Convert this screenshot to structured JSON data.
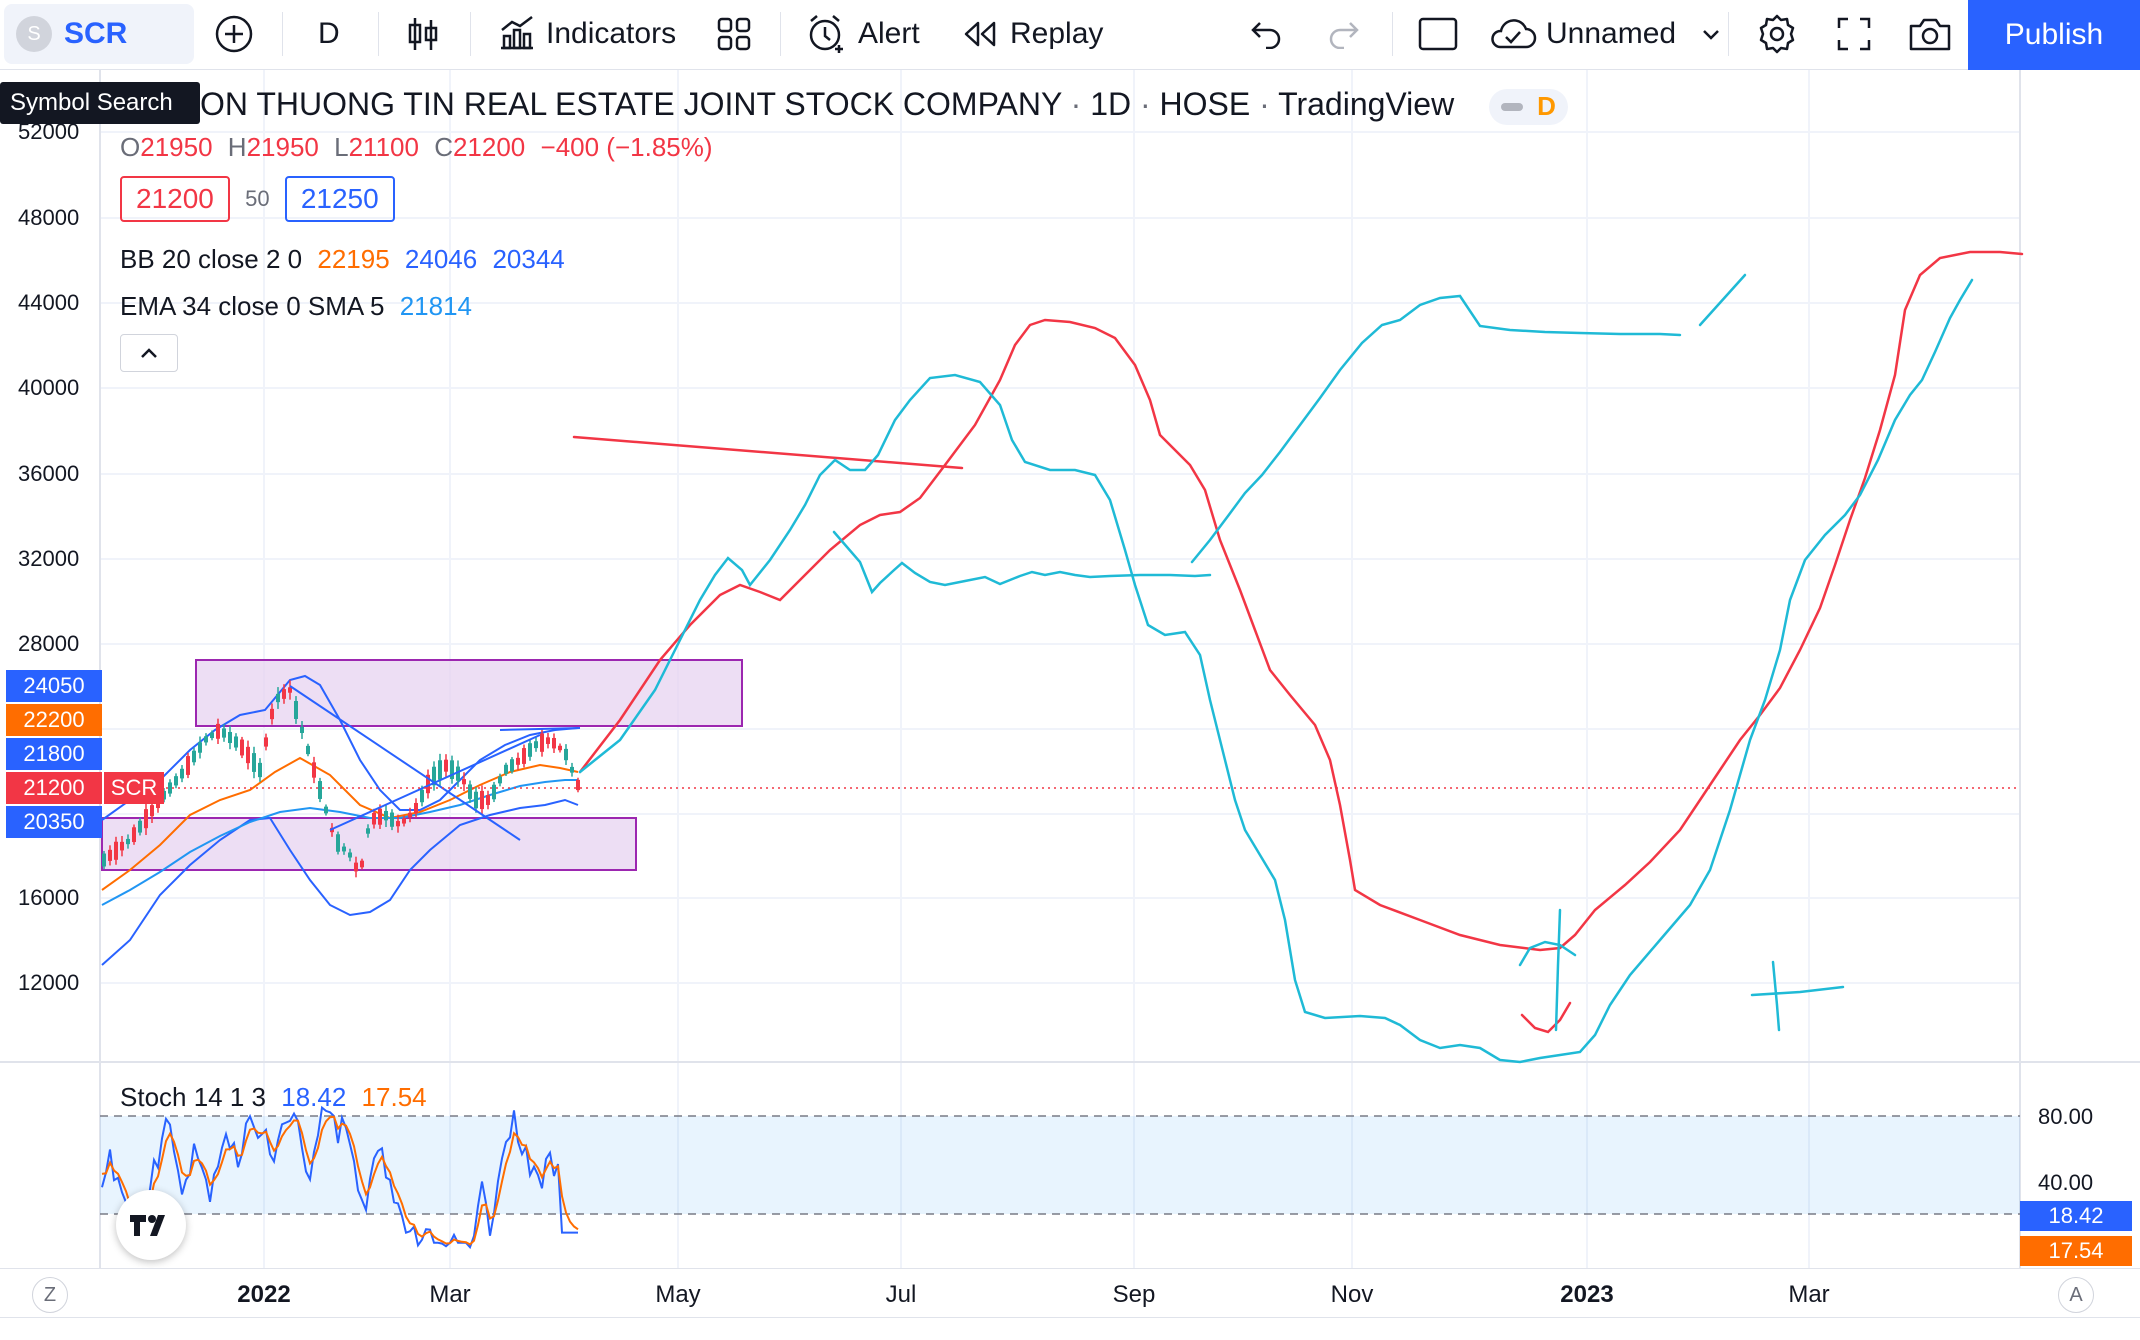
{
  "toolbar": {
    "symbol": "SCR",
    "symbol_logo_letter": "S",
    "interval": "D",
    "indicators_label": "Indicators",
    "alert_label": "Alert",
    "replay_label": "Replay",
    "layout_name": "Unnamed",
    "publish_label": "Publish"
  },
  "tooltip": {
    "text": "Symbol Search"
  },
  "legend": {
    "title_company": "ON THUONG TIN REAL ESTATE JOINT STOCK COMPANY",
    "title_interval": "1D",
    "title_exchange": "HOSE",
    "title_source": "TradingView",
    "title_sep": "·",
    "badge_letter": "D",
    "ohlc": {
      "o_label": "O",
      "o": "21950",
      "h_label": "H",
      "h": "21950",
      "l_label": "L",
      "l": "21100",
      "c_label": "C",
      "c": "21200",
      "change": "−400 (−1.85%)"
    },
    "bid": "21200",
    "spread": "50",
    "ask": "21250",
    "bb": {
      "label": "BB 20 close 2 0",
      "basis": "22195",
      "upper": "24046",
      "lower": "20344"
    },
    "ema": {
      "label": "EMA 34 close 0 SMA 5",
      "value": "21814"
    }
  },
  "price_axis": {
    "labels": [
      "52000",
      "48000",
      "44000",
      "40000",
      "36000",
      "32000",
      "28000",
      "16000",
      "12000"
    ],
    "tags": [
      {
        "value": "24050",
        "color": "#2962ff"
      },
      {
        "value": "22200",
        "color": "#ff6d00"
      },
      {
        "value": "21800",
        "color": "#2962ff"
      },
      {
        "value": "21200",
        "color": "#f23645"
      },
      {
        "value": "20350",
        "color": "#2962ff"
      }
    ],
    "symbol_tag": "SCR"
  },
  "stoch": {
    "label": "Stoch 14 1 3",
    "k": "18.42",
    "d": "17.54",
    "levels": [
      "80.00",
      "40.00"
    ],
    "tag_k": "18.42",
    "tag_d": "17.54"
  },
  "time_axis": {
    "labels": [
      {
        "text": "2022",
        "bold": true
      },
      {
        "text": "Mar",
        "bold": false
      },
      {
        "text": "May",
        "bold": false
      },
      {
        "text": "Jul",
        "bold": false
      },
      {
        "text": "Sep",
        "bold": false
      },
      {
        "text": "Nov",
        "bold": false
      },
      {
        "text": "2023",
        "bold": true
      },
      {
        "text": "Mar",
        "bold": false
      }
    ],
    "left_corner": "Z",
    "right_corner": "A"
  },
  "colors": {
    "accent": "#2962ff",
    "up": "#26a69a",
    "down": "#f23645",
    "drawing_cyan": "#1fbad6",
    "drawing_red": "#f23645",
    "zone_fill": "#e7d3f0",
    "zone_stroke": "#9c27b0"
  }
}
